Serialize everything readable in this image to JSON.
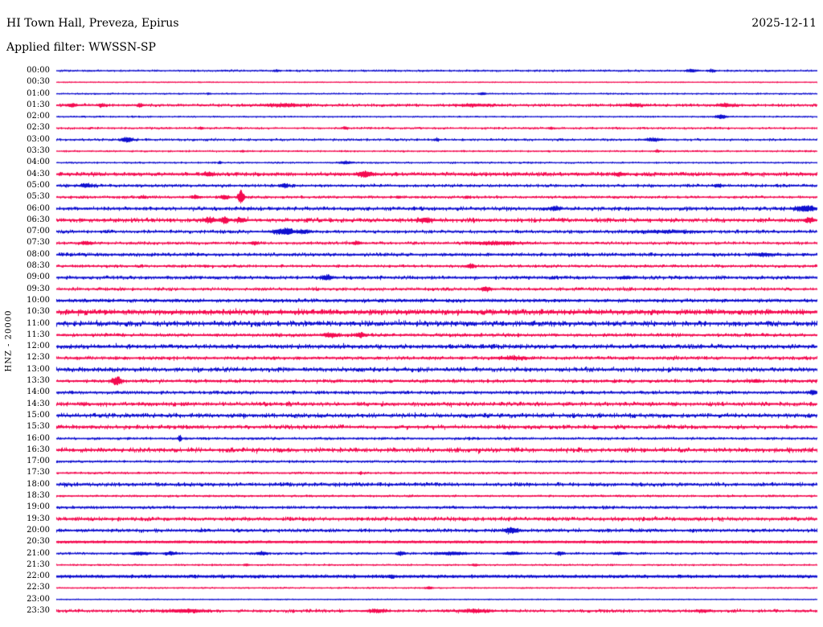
{
  "header": {
    "station_title": "HI Town Hall, Preveza, Epirus",
    "date": "2025-12-11",
    "filter_line": "Applied filter: WWSSN-SP"
  },
  "axis": {
    "channel_scale_label": "HNZ - 20000",
    "time_interval_minutes": 30,
    "first_row_time": "00:00",
    "last_row_time": "23:30"
  },
  "chart_data": {
    "type": "line",
    "subtype": "helicorder-seismogram-dayplot",
    "title": "HI Town Hall, Preveza, Epirus",
    "date": "2025-12-11",
    "filter": "WWSSN-SP",
    "channel": "HNZ",
    "scale": "20000",
    "palette": {
      "even_row_trace": "#0f0fd0",
      "odd_row_trace": "#f40a50",
      "text": "#000000",
      "background": "#ffffff"
    },
    "legend_position": "none",
    "grid": false,
    "rows": [
      {
        "time": "00:00",
        "color": "blue",
        "noise": 0.35,
        "weight": 0.6,
        "events": [
          [
            0.29,
            1.2,
            2
          ],
          [
            0.835,
            1.6,
            6
          ],
          [
            0.862,
            1.2,
            4
          ]
        ]
      },
      {
        "time": "00:30",
        "color": "red",
        "noise": 0.15,
        "weight": 0.6,
        "events": []
      },
      {
        "time": "01:00",
        "color": "blue",
        "noise": 0.25,
        "weight": 0.6,
        "events": [
          [
            0.2,
            0.8,
            2
          ],
          [
            0.56,
            1.2,
            4
          ]
        ]
      },
      {
        "time": "01:30",
        "color": "red",
        "noise": 0.55,
        "weight": 0.7,
        "events": [
          [
            0.02,
            1.6,
            6
          ],
          [
            0.06,
            1.4,
            5
          ],
          [
            0.11,
            1.2,
            4
          ],
          [
            0.3,
            1.2,
            25
          ],
          [
            0.55,
            1.0,
            20
          ],
          [
            0.76,
            1.0,
            15
          ],
          [
            0.88,
            1.4,
            10
          ]
        ]
      },
      {
        "time": "02:00",
        "color": "blue",
        "noise": 0.25,
        "weight": 0.6,
        "events": [
          [
            0.874,
            2.2,
            6
          ]
        ]
      },
      {
        "time": "02:30",
        "color": "red",
        "noise": 0.4,
        "weight": 0.6,
        "events": [
          [
            0.19,
            1.2,
            3
          ],
          [
            0.38,
            1.2,
            3
          ],
          [
            0.65,
            1.2,
            3
          ]
        ]
      },
      {
        "time": "03:00",
        "color": "blue",
        "noise": 0.45,
        "weight": 0.6,
        "events": [
          [
            0.093,
            2.6,
            7
          ],
          [
            0.5,
            1.2,
            3
          ],
          [
            0.785,
            1.5,
            10
          ]
        ]
      },
      {
        "time": "03:30",
        "color": "red",
        "noise": 0.3,
        "weight": 0.6,
        "events": [
          [
            0.245,
            1.0,
            2
          ],
          [
            0.79,
            1.3,
            3
          ]
        ]
      },
      {
        "time": "04:00",
        "color": "blue",
        "noise": 0.3,
        "weight": 0.6,
        "events": [
          [
            0.215,
            1.1,
            2
          ],
          [
            0.38,
            1.3,
            8
          ]
        ]
      },
      {
        "time": "04:30",
        "color": "red",
        "noise": 0.7,
        "weight": 0.9,
        "events": [
          [
            0.2,
            1.5,
            6
          ],
          [
            0.405,
            3.0,
            8
          ],
          [
            0.74,
            1.5,
            6
          ]
        ]
      },
      {
        "time": "05:00",
        "color": "blue",
        "noise": 0.6,
        "weight": 0.7,
        "events": [
          [
            0.04,
            1.7,
            8
          ],
          [
            0.3,
            2.0,
            5
          ],
          [
            0.87,
            1.3,
            5
          ]
        ]
      },
      {
        "time": "05:30",
        "color": "red",
        "noise": 0.5,
        "weight": 0.7,
        "events": [
          [
            0.114,
            1.2,
            4
          ],
          [
            0.183,
            1.6,
            5
          ],
          [
            0.221,
            2.2,
            5
          ],
          [
            0.2425,
            8.5,
            3.5
          ],
          [
            0.45,
            1.3,
            3
          ],
          [
            0.54,
            1.3,
            3
          ]
        ]
      },
      {
        "time": "06:00",
        "color": "blue",
        "noise": 0.75,
        "weight": 0.8,
        "events": [
          [
            0.655,
            1.6,
            7
          ],
          [
            0.985,
            2.8,
            12
          ]
        ]
      },
      {
        "time": "06:30",
        "color": "red",
        "noise": 0.85,
        "weight": 0.8,
        "events": [
          [
            0.201,
            2.2,
            8
          ],
          [
            0.221,
            3.0,
            5
          ],
          [
            0.2415,
            2.2,
            6
          ],
          [
            0.485,
            2.2,
            8
          ],
          [
            0.99,
            2.0,
            6
          ]
        ]
      },
      {
        "time": "07:00",
        "color": "blue",
        "noise": 0.65,
        "weight": 0.7,
        "events": [
          [
            0.294,
            2.2,
            10
          ],
          [
            0.305,
            2.8,
            5
          ],
          [
            0.324,
            1.8,
            8
          ],
          [
            0.8,
            0.9,
            40
          ]
        ]
      },
      {
        "time": "07:30",
        "color": "red",
        "noise": 0.55,
        "weight": 0.7,
        "events": [
          [
            0.04,
            1.5,
            8
          ],
          [
            0.26,
            1.5,
            5
          ],
          [
            0.395,
            1.5,
            6
          ],
          [
            0.58,
            1.2,
            30
          ]
        ]
      },
      {
        "time": "08:00",
        "color": "blue",
        "noise": 0.65,
        "weight": 0.8,
        "events": [
          [
            0.93,
            1.2,
            12
          ]
        ]
      },
      {
        "time": "08:30",
        "color": "red",
        "noise": 0.55,
        "weight": 0.7,
        "events": [
          [
            0.545,
            2.2,
            5
          ]
        ]
      },
      {
        "time": "09:00",
        "color": "blue",
        "noise": 0.65,
        "weight": 0.8,
        "events": [
          [
            0.355,
            2.2,
            6
          ],
          [
            0.747,
            1.2,
            6
          ]
        ]
      },
      {
        "time": "09:30",
        "color": "red",
        "noise": 0.6,
        "weight": 0.7,
        "events": [
          [
            0.565,
            2.2,
            6
          ]
        ]
      },
      {
        "time": "10:00",
        "color": "blue",
        "noise": 0.6,
        "weight": 0.9,
        "events": []
      },
      {
        "time": "10:30",
        "color": "red",
        "noise": 1.0,
        "weight": 1.1,
        "events": []
      },
      {
        "time": "11:00",
        "color": "blue",
        "noise": 1.1,
        "weight": 0.9,
        "events": []
      },
      {
        "time": "11:30",
        "color": "red",
        "noise": 0.65,
        "weight": 0.8,
        "events": [
          [
            0.36,
            2.0,
            8
          ],
          [
            0.4,
            2.0,
            6
          ]
        ]
      },
      {
        "time": "12:00",
        "color": "blue",
        "noise": 0.85,
        "weight": 0.9,
        "events": []
      },
      {
        "time": "12:30",
        "color": "red",
        "noise": 0.65,
        "weight": 0.8,
        "events": [
          [
            0.6,
            1.2,
            15
          ]
        ]
      },
      {
        "time": "13:00",
        "color": "blue",
        "noise": 0.9,
        "weight": 0.8,
        "events": []
      },
      {
        "time": "13:30",
        "color": "red",
        "noise": 0.65,
        "weight": 0.8,
        "events": [
          [
            0.079,
            4.5,
            6
          ],
          [
            0.92,
            1.5,
            5
          ]
        ]
      },
      {
        "time": "14:00",
        "color": "blue",
        "noise": 0.6,
        "weight": 0.8,
        "events": [
          [
            0.995,
            2.2,
            5
          ]
        ]
      },
      {
        "time": "14:30",
        "color": "red",
        "noise": 0.8,
        "weight": 0.8,
        "events": []
      },
      {
        "time": "15:00",
        "color": "blue",
        "noise": 0.9,
        "weight": 0.8,
        "events": []
      },
      {
        "time": "15:30",
        "color": "red",
        "noise": 0.8,
        "weight": 0.8,
        "events": []
      },
      {
        "time": "16:00",
        "color": "blue",
        "noise": 0.45,
        "weight": 0.7,
        "events": [
          [
            0.162,
            3.5,
            2
          ]
        ]
      },
      {
        "time": "16:30",
        "color": "red",
        "noise": 0.95,
        "weight": 0.8,
        "events": []
      },
      {
        "time": "17:00",
        "color": "blue",
        "noise": 0.4,
        "weight": 0.7,
        "events": []
      },
      {
        "time": "17:30",
        "color": "red",
        "noise": 0.35,
        "weight": 0.7,
        "events": [
          [
            0.4,
            1.8,
            1.5
          ]
        ]
      },
      {
        "time": "18:00",
        "color": "blue",
        "noise": 0.75,
        "weight": 0.8,
        "events": []
      },
      {
        "time": "18:30",
        "color": "red",
        "noise": 0.35,
        "weight": 0.7,
        "events": []
      },
      {
        "time": "19:00",
        "color": "blue",
        "noise": 0.5,
        "weight": 0.8,
        "events": []
      },
      {
        "time": "19:30",
        "color": "red",
        "noise": 0.75,
        "weight": 0.8,
        "events": []
      },
      {
        "time": "20:00",
        "color": "blue",
        "noise": 0.65,
        "weight": 0.8,
        "events": [
          [
            0.598,
            3.0,
            8
          ]
        ]
      },
      {
        "time": "20:30",
        "color": "red",
        "noise": 0.3,
        "weight": 1.1,
        "events": []
      },
      {
        "time": "21:00",
        "color": "blue",
        "noise": 0.4,
        "weight": 0.7,
        "events": [
          [
            0.11,
            1.3,
            12
          ],
          [
            0.15,
            1.3,
            8
          ],
          [
            0.27,
            1.7,
            6
          ],
          [
            0.453,
            1.9,
            5
          ],
          [
            0.52,
            1.2,
            18
          ],
          [
            0.6,
            1.3,
            10
          ],
          [
            0.662,
            1.9,
            4
          ],
          [
            0.74,
            1.2,
            8
          ]
        ]
      },
      {
        "time": "21:30",
        "color": "red",
        "noise": 0.3,
        "weight": 0.6,
        "events": [
          [
            0.25,
            1.0,
            3
          ],
          [
            0.55,
            1.0,
            4
          ]
        ]
      },
      {
        "time": "22:00",
        "color": "blue",
        "noise": 0.45,
        "weight": 1.1,
        "events": [
          [
            0.44,
            1.2,
            4
          ]
        ]
      },
      {
        "time": "22:30",
        "color": "red",
        "noise": 0.25,
        "weight": 0.6,
        "events": [
          [
            0.49,
            1.2,
            4
          ]
        ]
      },
      {
        "time": "23:00",
        "color": "blue",
        "noise": 0.15,
        "weight": 0.6,
        "events": []
      },
      {
        "time": "23:30",
        "color": "red",
        "noise": 0.6,
        "weight": 0.7,
        "events": [
          [
            0.17,
            1.4,
            25
          ],
          [
            0.42,
            1.3,
            12
          ],
          [
            0.55,
            1.3,
            20
          ],
          [
            0.85,
            1.3,
            8
          ]
        ]
      }
    ]
  }
}
